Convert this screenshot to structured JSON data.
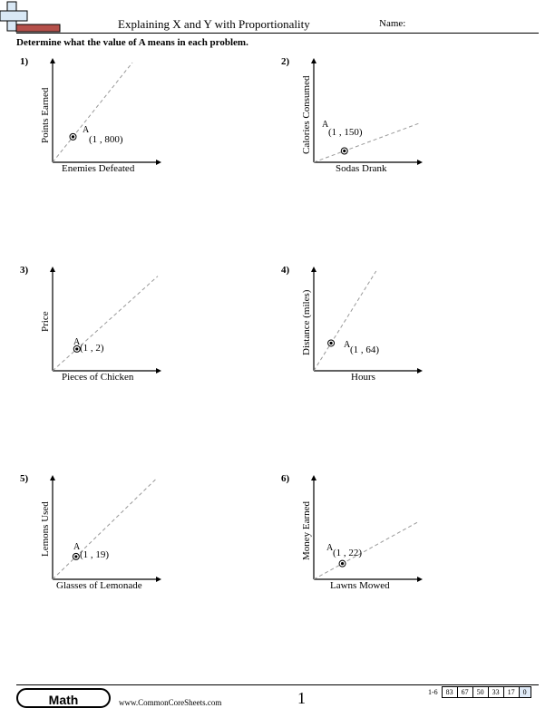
{
  "header": {
    "title": "Explaining X and Y with Proportionality",
    "name_label": "Name:",
    "instructions": "Determine what the value of A means in each problem."
  },
  "problems": [
    {
      "number": "1)",
      "ylabel": "Points Earned",
      "xlabel": "Enemies Defeated",
      "point_name": "A",
      "point_label": "(1 , 800)",
      "point": {
        "x": 1,
        "y": 800
      },
      "chart_data": {
        "type": "line",
        "x": [
          0,
          1
        ],
        "y": [
          0,
          800
        ],
        "xlabel": "Enemies Defeated",
        "ylabel": "Points Earned"
      }
    },
    {
      "number": "2)",
      "ylabel": "Calories Consumed",
      "xlabel": "Sodas Drank",
      "point_name": "A",
      "point_label": "(1 , 150)",
      "point": {
        "x": 1,
        "y": 150
      },
      "chart_data": {
        "type": "line",
        "x": [
          0,
          1
        ],
        "y": [
          0,
          150
        ],
        "xlabel": "Sodas Drank",
        "ylabel": "Calories Consumed"
      }
    },
    {
      "number": "3)",
      "ylabel": "Price",
      "xlabel": "Pieces of Chicken",
      "point_name": "A",
      "point_label": "(1 , 2)",
      "point": {
        "x": 1,
        "y": 2
      },
      "chart_data": {
        "type": "line",
        "x": [
          0,
          1
        ],
        "y": [
          0,
          2
        ],
        "xlabel": "Pieces of Chicken",
        "ylabel": "Price"
      }
    },
    {
      "number": "4)",
      "ylabel": "Distance (miles)",
      "xlabel": "Hours",
      "point_name": "A",
      "point_label": "(1 , 64)",
      "point": {
        "x": 1,
        "y": 64
      },
      "chart_data": {
        "type": "line",
        "x": [
          0,
          1
        ],
        "y": [
          0,
          64
        ],
        "xlabel": "Hours",
        "ylabel": "Distance (miles)"
      }
    },
    {
      "number": "5)",
      "ylabel": "Lemons Used",
      "xlabel": "Glasses of Lemonade",
      "point_name": "A",
      "point_label": "(1 , 19)",
      "point": {
        "x": 1,
        "y": 19
      },
      "chart_data": {
        "type": "line",
        "x": [
          0,
          1
        ],
        "y": [
          0,
          19
        ],
        "xlabel": "Glasses of Lemonade",
        "ylabel": "Lemons Used"
      }
    },
    {
      "number": "6)",
      "ylabel": "Money Earned",
      "xlabel": "Lawns Mowed",
      "point_name": "A",
      "point_label": "(1 , 22)",
      "point": {
        "x": 1,
        "y": 22
      },
      "chart_data": {
        "type": "line",
        "x": [
          0,
          1
        ],
        "y": [
          0,
          22
        ],
        "xlabel": "Lawns Mowed",
        "ylabel": "Money Earned"
      }
    }
  ],
  "footer": {
    "subject": "Math",
    "website": "www.CommonCoreSheets.com",
    "page_number": "1",
    "score_range": "1-6",
    "scores": [
      "83",
      "67",
      "50",
      "33",
      "17",
      "0"
    ]
  }
}
